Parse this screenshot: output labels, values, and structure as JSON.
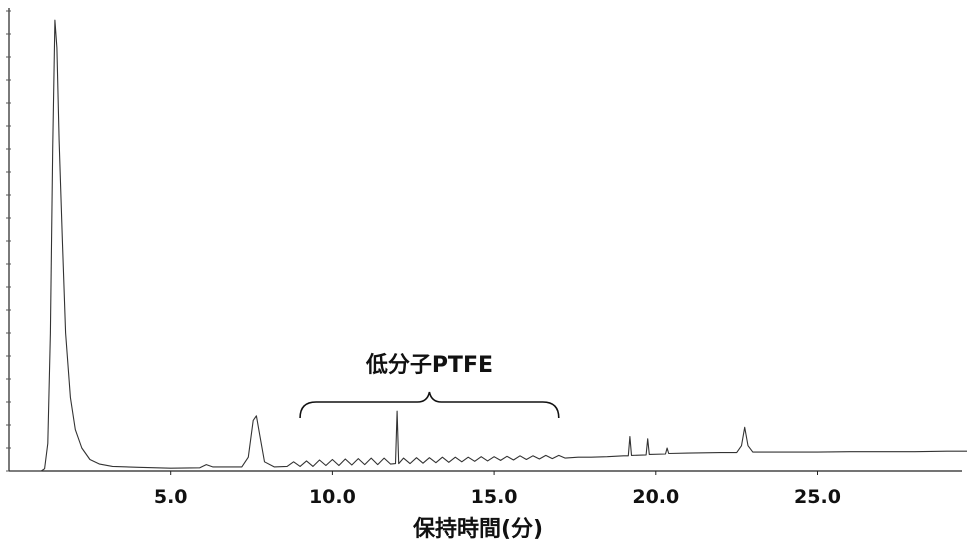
{
  "chart_data": {
    "type": "line",
    "title": "",
    "xlabel": "保持時間(分)",
    "ylabel": "",
    "xlim": [
      0,
      30
    ],
    "ylim": [
      0,
      100
    ],
    "x_ticks": [
      "5.0",
      "10.0",
      "15.0",
      "20.0",
      "25.0"
    ],
    "grid": false,
    "annotation": {
      "text": "低分子PTFE",
      "x_start": 9.0,
      "x_end": 17.0
    },
    "series": [
      {
        "values": [
          [
            0.0,
            0.0
          ],
          [
            1.0,
            0.0
          ],
          [
            1.1,
            0.5
          ],
          [
            1.2,
            6
          ],
          [
            1.28,
            30
          ],
          [
            1.35,
            70
          ],
          [
            1.42,
            98
          ],
          [
            1.48,
            92
          ],
          [
            1.55,
            72
          ],
          [
            1.65,
            50
          ],
          [
            1.75,
            30
          ],
          [
            1.9,
            16
          ],
          [
            2.05,
            9
          ],
          [
            2.25,
            5
          ],
          [
            2.5,
            2.5
          ],
          [
            2.8,
            1.5
          ],
          [
            3.2,
            1.0
          ],
          [
            4.0,
            0.8
          ],
          [
            5.0,
            0.6
          ],
          [
            5.9,
            0.7
          ],
          [
            6.1,
            1.4
          ],
          [
            6.3,
            0.9
          ],
          [
            7.2,
            0.9
          ],
          [
            7.4,
            3
          ],
          [
            7.55,
            11
          ],
          [
            7.65,
            12
          ],
          [
            7.75,
            8
          ],
          [
            7.9,
            2
          ],
          [
            8.2,
            0.9
          ],
          [
            8.6,
            1.0
          ],
          [
            8.8,
            2.0
          ],
          [
            9.0,
            1.0
          ],
          [
            9.2,
            2.2
          ],
          [
            9.4,
            1.0
          ],
          [
            9.6,
            2.4
          ],
          [
            9.8,
            1.2
          ],
          [
            10.0,
            2.5
          ],
          [
            10.2,
            1.2
          ],
          [
            10.4,
            2.6
          ],
          [
            10.6,
            1.3
          ],
          [
            10.8,
            2.7
          ],
          [
            11.0,
            1.4
          ],
          [
            11.2,
            2.8
          ],
          [
            11.4,
            1.4
          ],
          [
            11.6,
            2.8
          ],
          [
            11.8,
            1.5
          ],
          [
            11.95,
            1.6
          ],
          [
            12.0,
            13.0
          ],
          [
            12.05,
            1.6
          ],
          [
            12.2,
            2.8
          ],
          [
            12.4,
            1.6
          ],
          [
            12.6,
            2.9
          ],
          [
            12.8,
            1.7
          ],
          [
            13.0,
            2.9
          ],
          [
            13.2,
            1.8
          ],
          [
            13.4,
            3.0
          ],
          [
            13.6,
            1.9
          ],
          [
            13.8,
            3.0
          ],
          [
            14.0,
            2.0
          ],
          [
            14.2,
            3.0
          ],
          [
            14.4,
            2.1
          ],
          [
            14.6,
            3.1
          ],
          [
            14.8,
            2.2
          ],
          [
            15.0,
            3.1
          ],
          [
            15.2,
            2.3
          ],
          [
            15.4,
            3.2
          ],
          [
            15.6,
            2.4
          ],
          [
            15.8,
            3.3
          ],
          [
            16.0,
            2.5
          ],
          [
            16.2,
            3.3
          ],
          [
            16.4,
            2.6
          ],
          [
            16.6,
            3.4
          ],
          [
            16.8,
            2.7
          ],
          [
            17.0,
            3.4
          ],
          [
            17.2,
            2.8
          ],
          [
            17.6,
            3.0
          ],
          [
            18.0,
            3.0
          ],
          [
            18.5,
            3.1
          ],
          [
            19.0,
            3.3
          ],
          [
            19.15,
            3.3
          ],
          [
            19.2,
            7.5
          ],
          [
            19.25,
            3.4
          ],
          [
            19.7,
            3.5
          ],
          [
            19.75,
            7.0
          ],
          [
            19.8,
            3.6
          ],
          [
            20.3,
            3.7
          ],
          [
            20.35,
            5.0
          ],
          [
            20.4,
            3.8
          ],
          [
            21.0,
            3.9
          ],
          [
            22.0,
            4.0
          ],
          [
            22.5,
            4.0
          ],
          [
            22.65,
            5.5
          ],
          [
            22.75,
            9.5
          ],
          [
            22.85,
            5.5
          ],
          [
            23.0,
            4.1
          ],
          [
            24.0,
            4.1
          ],
          [
            25.0,
            4.1
          ],
          [
            26.0,
            4.2
          ],
          [
            27.0,
            4.2
          ],
          [
            28.0,
            4.2
          ],
          [
            29.0,
            4.3
          ],
          [
            30.0,
            4.3
          ]
        ]
      }
    ]
  }
}
